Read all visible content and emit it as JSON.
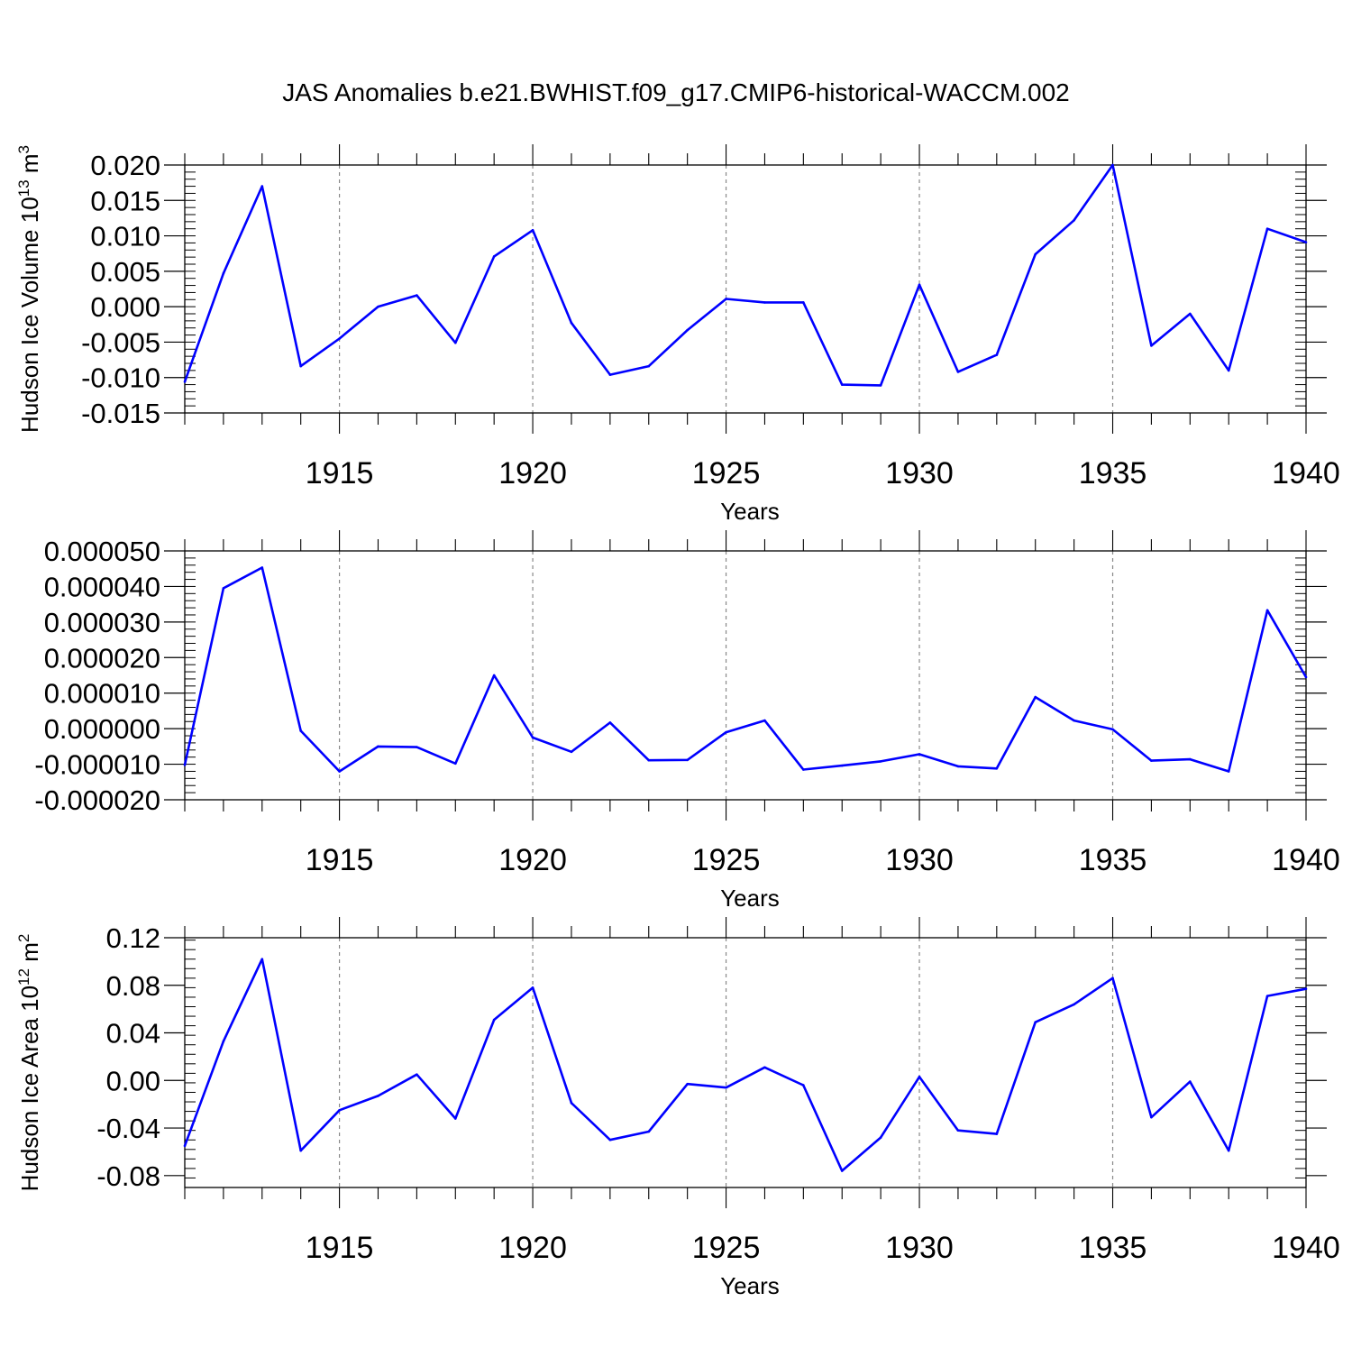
{
  "title": "JAS Anomalies b.e21.BWHIST.f09_g17.CMIP6-historical-WACCM.002",
  "line_color": "#0000ff",
  "chart_data": [
    {
      "type": "line",
      "name": "ice-volume",
      "ylabel_main": "Hudson Ice Volume 10",
      "ylabel_exp": "13",
      "ylabel_tail": " m",
      "ylabel_unit_exp": "3",
      "xlabel": "Years",
      "xlim": [
        1911,
        1940
      ],
      "ylim": [
        -0.015,
        0.02
      ],
      "yticks": [
        -0.015,
        -0.01,
        -0.005,
        0.0,
        0.005,
        0.01,
        0.015,
        0.02
      ],
      "ytick_labels": [
        "-0.015",
        "-0.010",
        "-0.005",
        "0.000",
        "0.005",
        "0.010",
        "0.015",
        "0.020"
      ],
      "xticks": [
        1915,
        1920,
        1925,
        1930,
        1935,
        1940
      ],
      "xtick_labels": [
        "1915",
        "1920",
        "1925",
        "1930",
        "1935",
        "1940"
      ],
      "x": [
        1911,
        1912,
        1913,
        1914,
        1915,
        1916,
        1917,
        1918,
        1919,
        1920,
        1921,
        1922,
        1923,
        1924,
        1925,
        1926,
        1927,
        1928,
        1929,
        1930,
        1931,
        1932,
        1933,
        1934,
        1935,
        1936,
        1937,
        1938,
        1939,
        1940
      ],
      "y": [
        -0.0106,
        0.0047,
        0.017,
        -0.0084,
        -0.0045,
        0.0,
        0.0016,
        -0.0051,
        0.0071,
        0.0108,
        -0.0023,
        -0.0096,
        -0.0084,
        -0.0033,
        0.0011,
        0.0006,
        0.0006,
        -0.011,
        -0.0111,
        0.0031,
        -0.0092,
        -0.0068,
        0.0074,
        0.0122,
        0.02,
        -0.0055,
        -0.001,
        -0.009,
        0.011,
        0.0091
      ]
    },
    {
      "type": "line",
      "name": "ice-thickness",
      "ylabel_main": "",
      "ylabel_exp": "",
      "ylabel_tail": "",
      "ylabel_unit_exp": "",
      "xlabel": "Years",
      "xlim": [
        1911,
        1940
      ],
      "ylim": [
        -2e-05,
        5e-05
      ],
      "yticks": [
        -2e-05,
        -1e-05,
        0,
        1e-05,
        2e-05,
        3e-05,
        4e-05,
        5e-05
      ],
      "ytick_labels": [
        "-0.000020",
        "-0.000010",
        "0.000000",
        "0.000010",
        "0.000020",
        "0.000030",
        "0.000040",
        "0.000050"
      ],
      "xticks": [
        1915,
        1920,
        1925,
        1930,
        1935,
        1940
      ],
      "xtick_labels": [
        "1915",
        "1920",
        "1925",
        "1930",
        "1935",
        "1940"
      ],
      "x": [
        1911,
        1912,
        1913,
        1914,
        1915,
        1916,
        1917,
        1918,
        1919,
        1920,
        1921,
        1922,
        1923,
        1924,
        1925,
        1926,
        1927,
        1928,
        1929,
        1930,
        1931,
        1932,
        1933,
        1934,
        1935,
        1936,
        1937,
        1938,
        1939,
        1940
      ],
      "y": [
        -1.02e-05,
        3.95e-05,
        4.53e-05,
        -6e-07,
        -1.2e-05,
        -5e-06,
        -5.2e-06,
        -9.8e-06,
        1.5e-05,
        -2.5e-06,
        -6.5e-06,
        1.7e-06,
        -8.9e-06,
        -8.8e-06,
        -1e-06,
        2.3e-06,
        -1.15e-05,
        -1.04e-05,
        -9.2e-06,
        -7.2e-06,
        -1.06e-05,
        -1.12e-05,
        8.9e-06,
        2.3e-06,
        -2e-07,
        -9e-06,
        -8.6e-06,
        -1.2e-05,
        3.33e-05,
        1.45e-05
      ]
    },
    {
      "type": "line",
      "name": "ice-area",
      "ylabel_main": "Hudson Ice Area 10",
      "ylabel_exp": "12",
      "ylabel_tail": " m",
      "ylabel_unit_exp": "2",
      "xlabel": "Years",
      "xlim": [
        1911,
        1940
      ],
      "ylim": [
        -0.09,
        0.12
      ],
      "yticks": [
        -0.08,
        -0.04,
        0.0,
        0.04,
        0.08,
        0.12
      ],
      "ytick_labels": [
        "-0.08",
        "-0.04",
        "0.00",
        "0.04",
        "0.08",
        "0.12"
      ],
      "xticks": [
        1915,
        1920,
        1925,
        1930,
        1935,
        1940
      ],
      "xtick_labels": [
        "1915",
        "1920",
        "1925",
        "1930",
        "1935",
        "1940"
      ],
      "x": [
        1911,
        1912,
        1913,
        1914,
        1915,
        1916,
        1917,
        1918,
        1919,
        1920,
        1921,
        1922,
        1923,
        1924,
        1925,
        1926,
        1927,
        1928,
        1929,
        1930,
        1931,
        1932,
        1933,
        1934,
        1935,
        1936,
        1937,
        1938,
        1939,
        1940
      ],
      "y": [
        -0.055,
        0.033,
        0.102,
        -0.059,
        -0.025,
        -0.013,
        0.005,
        -0.032,
        0.051,
        0.078,
        -0.019,
        -0.05,
        -0.043,
        -0.003,
        -0.006,
        0.011,
        -0.004,
        -0.076,
        -0.048,
        0.003,
        -0.042,
        -0.045,
        0.049,
        0.064,
        0.086,
        -0.031,
        -0.001,
        -0.059,
        0.071,
        0.077
      ]
    }
  ]
}
